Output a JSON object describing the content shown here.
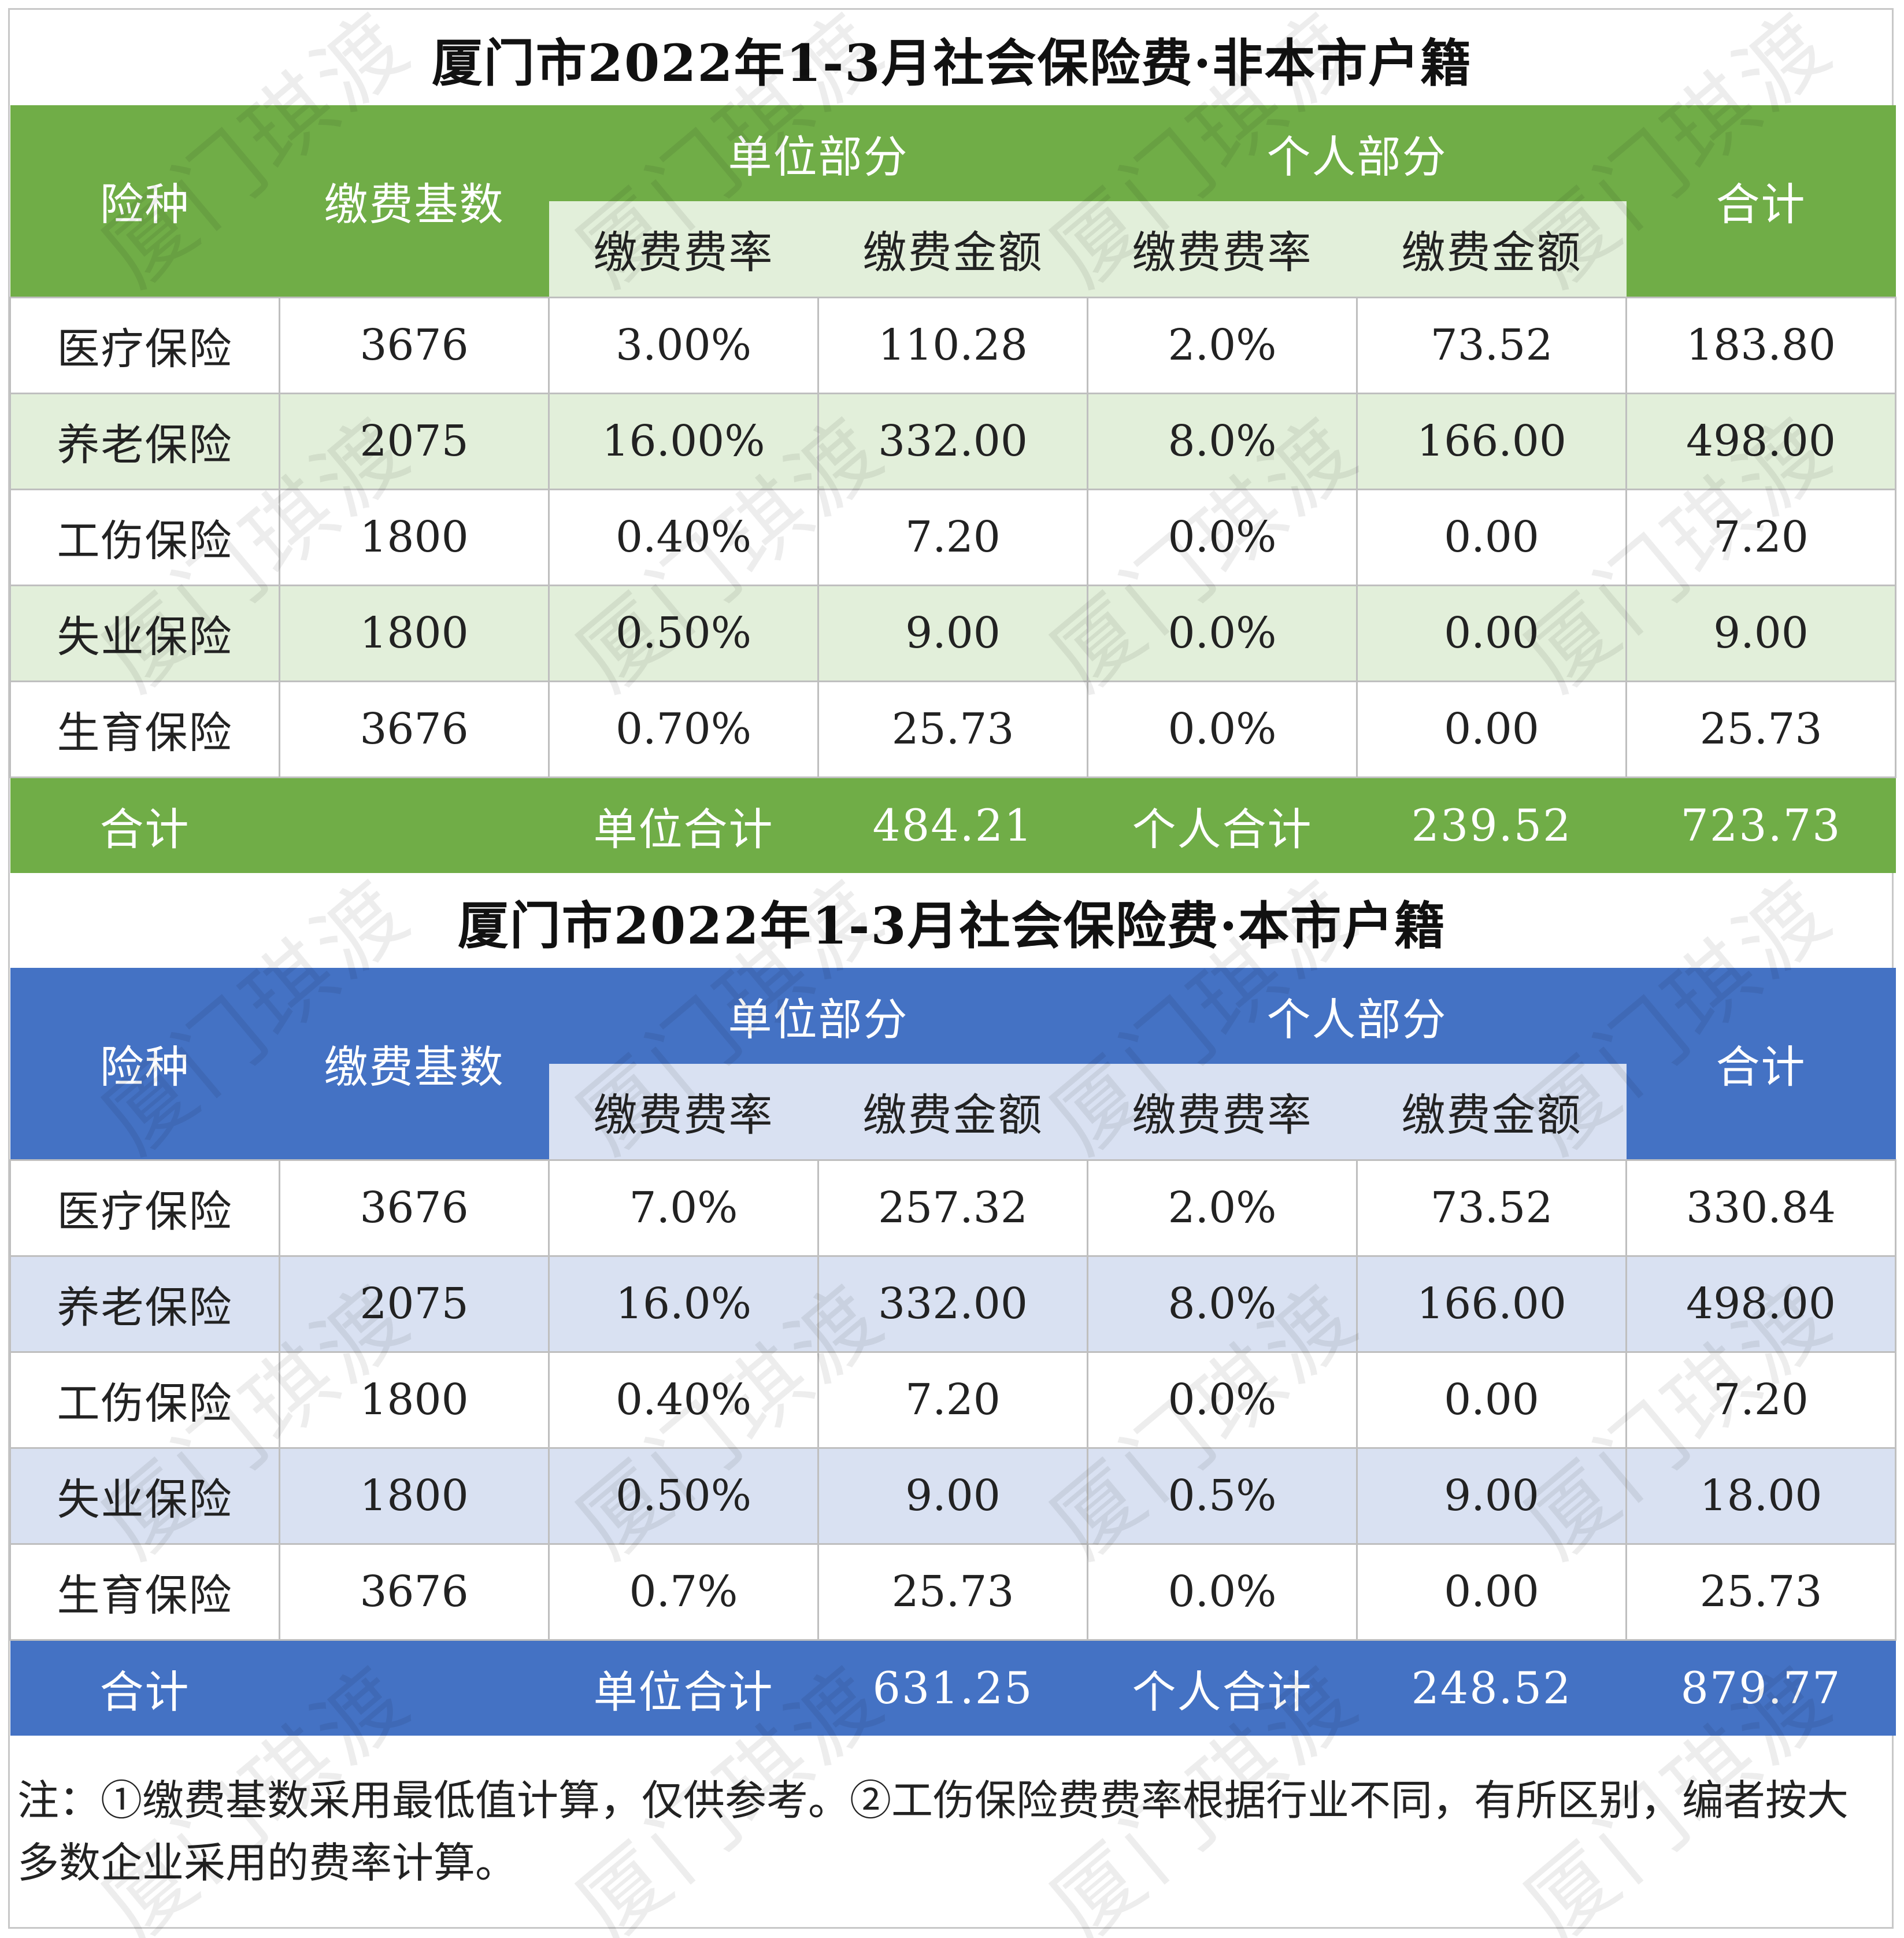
{
  "tables": [
    {
      "title": "厦门市2022年1-3月社会保险费·非本市户籍",
      "header": {
        "type": "险种",
        "base": "缴费基数",
        "company_group": "单位部分",
        "personal_group": "个人部分",
        "total": "合计",
        "rate": "缴费费率",
        "amount": "缴费金额"
      },
      "rows": [
        {
          "name": "医疗保险",
          "base": "3676",
          "c_rate": "3.00%",
          "c_amt": "110.28",
          "p_rate": "2.0%",
          "p_amt": "73.52",
          "total": "183.80"
        },
        {
          "name": "养老保险",
          "base": "2075",
          "c_rate": "16.00%",
          "c_amt": "332.00",
          "p_rate": "8.0%",
          "p_amt": "166.00",
          "total": "498.00"
        },
        {
          "name": "工伤保险",
          "base": "1800",
          "c_rate": "0.40%",
          "c_amt": "7.20",
          "p_rate": "0.0%",
          "p_amt": "0.00",
          "total": "7.20"
        },
        {
          "name": "失业保险",
          "base": "1800",
          "c_rate": "0.50%",
          "c_amt": "9.00",
          "p_rate": "0.0%",
          "p_amt": "0.00",
          "total": "9.00"
        },
        {
          "name": "生育保险",
          "base": "3676",
          "c_rate": "0.70%",
          "c_amt": "25.73",
          "p_rate": "0.0%",
          "p_amt": "0.00",
          "total": "25.73"
        }
      ],
      "footer": {
        "label": "合计",
        "company_label": "单位合计",
        "company_total": "484.21",
        "personal_label": "个人合计",
        "personal_total": "239.52",
        "grand_total": "723.73"
      },
      "theme_color": "#70ad47"
    },
    {
      "title": "厦门市2022年1-3月社会保险费·本市户籍",
      "header": {
        "type": "险种",
        "base": "缴费基数",
        "company_group": "单位部分",
        "personal_group": "个人部分",
        "total": "合计",
        "rate": "缴费费率",
        "amount": "缴费金额"
      },
      "rows": [
        {
          "name": "医疗保险",
          "base": "3676",
          "c_rate": "7.0%",
          "c_amt": "257.32",
          "p_rate": "2.0%",
          "p_amt": "73.52",
          "total": "330.84"
        },
        {
          "name": "养老保险",
          "base": "2075",
          "c_rate": "16.0%",
          "c_amt": "332.00",
          "p_rate": "8.0%",
          "p_amt": "166.00",
          "total": "498.00"
        },
        {
          "name": "工伤保险",
          "base": "1800",
          "c_rate": "0.40%",
          "c_amt": "7.20",
          "p_rate": "0.0%",
          "p_amt": "0.00",
          "total": "7.20"
        },
        {
          "name": "失业保险",
          "base": "1800",
          "c_rate": "0.50%",
          "c_amt": "9.00",
          "p_rate": "0.5%",
          "p_amt": "9.00",
          "total": "18.00"
        },
        {
          "name": "生育保险",
          "base": "3676",
          "c_rate": "0.7%",
          "c_amt": "25.73",
          "p_rate": "0.0%",
          "p_amt": "0.00",
          "total": "25.73"
        }
      ],
      "footer": {
        "label": "合计",
        "company_label": "单位合计",
        "company_total": "631.25",
        "personal_label": "个人合计",
        "personal_total": "248.52",
        "grand_total": "879.77"
      },
      "theme_color": "#4472c4"
    }
  ],
  "note": "注：①缴费基数采用最低值计算，仅供参考。②工伤保险费费率根据行业不同，有所区别，编者按大多数企业采用的费率计算。",
  "watermark": "厦门琪渡"
}
